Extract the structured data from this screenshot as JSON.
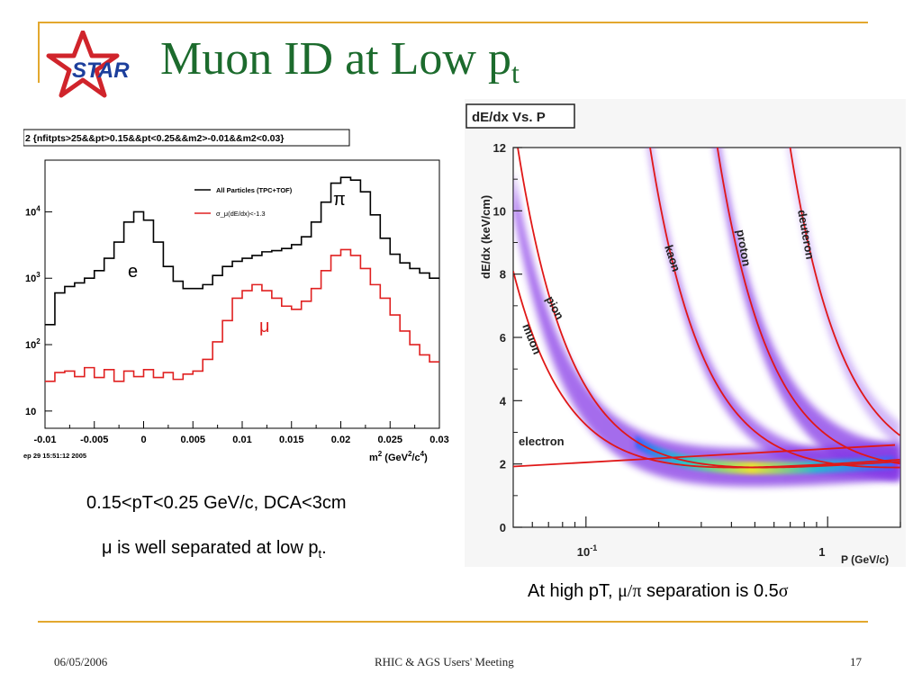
{
  "slide": {
    "title_main": "Muon ID at Low p",
    "title_sub": "t",
    "logo_text": "STAR",
    "footer": {
      "date": "06/05/2006",
      "center": "RHIC & AGS Users' Meeting",
      "page": "17"
    },
    "captions": {
      "left_1": "0.15<pT<0.25 GeV/c, DCA<3cm",
      "left_2_main": "μ is well separated at low p",
      "left_2_sub": "t",
      "left_2_end": ".",
      "right_pre": "At high pT, ",
      "right_sym": "μ/π",
      "right_mid": " separation is 0.5",
      "right_sigma": "σ"
    },
    "colors": {
      "title": "#1c6b2d",
      "rule": "#e3a82e",
      "logo_red": "#d0242b",
      "logo_blue": "#1d3f9c"
    }
  },
  "chart_data": [
    {
      "type": "line",
      "title": "2 {nfitpts>25&&pt>0.15&&pt<0.25&&m2>-0.01&&m2<0.03}",
      "xlabel_main": "m",
      "xlabel_sup1": "2",
      "xlabel_mid": " (GeV",
      "xlabel_sup2": "2",
      "xlabel_mid2": "/c",
      "xlabel_sup3": "4",
      "xlabel_end": ")",
      "timestamp": "ep 29 15:51:12 2005",
      "x_ticks": [
        "-0.01",
        "-0.005",
        "0",
        "0.005",
        "0.01",
        "0.015",
        "0.02",
        "0.025",
        "0.03"
      ],
      "y_ticks": [
        {
          "base": "10",
          "exp": ""
        },
        {
          "base": "10",
          "exp": "2"
        },
        {
          "base": "10",
          "exp": "3"
        },
        {
          "base": "10",
          "exp": "4"
        }
      ],
      "xlim": [
        -0.01,
        0.03
      ],
      "ylog": true,
      "legend": [
        "All Particles (TPC+TOF)",
        "σ_μ(dE/dx)<-1.3"
      ],
      "annotations": {
        "e": "e",
        "mu": "μ",
        "pi": "π"
      },
      "series": [
        {
          "name": "All Particles (TPC+TOF)",
          "color": "#000000",
          "x": [
            -0.01,
            -0.009,
            -0.008,
            -0.007,
            -0.006,
            -0.005,
            -0.004,
            -0.003,
            -0.002,
            -0.001,
            0.0,
            0.001,
            0.002,
            0.003,
            0.004,
            0.005,
            0.006,
            0.007,
            0.008,
            0.009,
            0.01,
            0.011,
            0.012,
            0.013,
            0.014,
            0.015,
            0.016,
            0.017,
            0.018,
            0.019,
            0.02,
            0.021,
            0.022,
            0.023,
            0.024,
            0.025,
            0.026,
            0.027,
            0.028,
            0.029,
            0.03
          ],
          "y": [
            200,
            600,
            750,
            850,
            1000,
            1300,
            2000,
            3500,
            7000,
            10000,
            7500,
            3500,
            1500,
            900,
            700,
            700,
            800,
            1100,
            1500,
            1800,
            2000,
            2200,
            2500,
            2600,
            2800,
            3200,
            4200,
            7000,
            14000,
            27000,
            33000,
            30000,
            20000,
            9000,
            4000,
            2300,
            1700,
            1400,
            1200,
            1000,
            200
          ]
        },
        {
          "name": "σ_μ(dE/dx)<-1.3",
          "color": "#e02020",
          "x": [
            -0.01,
            -0.009,
            -0.008,
            -0.007,
            -0.006,
            -0.005,
            -0.004,
            -0.003,
            -0.002,
            -0.001,
            0.0,
            0.001,
            0.002,
            0.003,
            0.004,
            0.005,
            0.006,
            0.007,
            0.008,
            0.009,
            0.01,
            0.011,
            0.012,
            0.013,
            0.014,
            0.015,
            0.016,
            0.017,
            0.018,
            0.019,
            0.02,
            0.021,
            0.022,
            0.023,
            0.024,
            0.025,
            0.026,
            0.027,
            0.028,
            0.029,
            0.03
          ],
          "y": [
            28,
            38,
            40,
            33,
            45,
            32,
            42,
            28,
            40,
            33,
            42,
            32,
            38,
            30,
            36,
            40,
            60,
            110,
            230,
            500,
            650,
            800,
            650,
            500,
            380,
            340,
            450,
            700,
            1300,
            2200,
            2700,
            2200,
            1400,
            800,
            500,
            280,
            160,
            100,
            70,
            55,
            40
          ]
        }
      ]
    },
    {
      "type": "scatter",
      "title": "dE/dx Vs. P",
      "xlabel": "P (GeV/c)",
      "ylabel": "dE/dx (keV/cm)",
      "x_scale": "log",
      "xlim": [
        0.05,
        2.0
      ],
      "ylim": [
        0,
        12
      ],
      "x_tick_labels": [
        {
          "base": "10",
          "exp": "-1"
        },
        {
          "base": "1",
          "exp": ""
        }
      ],
      "y_ticks": [
        "0",
        "2",
        "4",
        "6",
        "8",
        "10",
        "12"
      ],
      "band_labels": [
        "electron",
        "muon",
        "pion",
        "kaon",
        "proton",
        "deuteron"
      ],
      "curve_color": "#e01818"
    }
  ]
}
